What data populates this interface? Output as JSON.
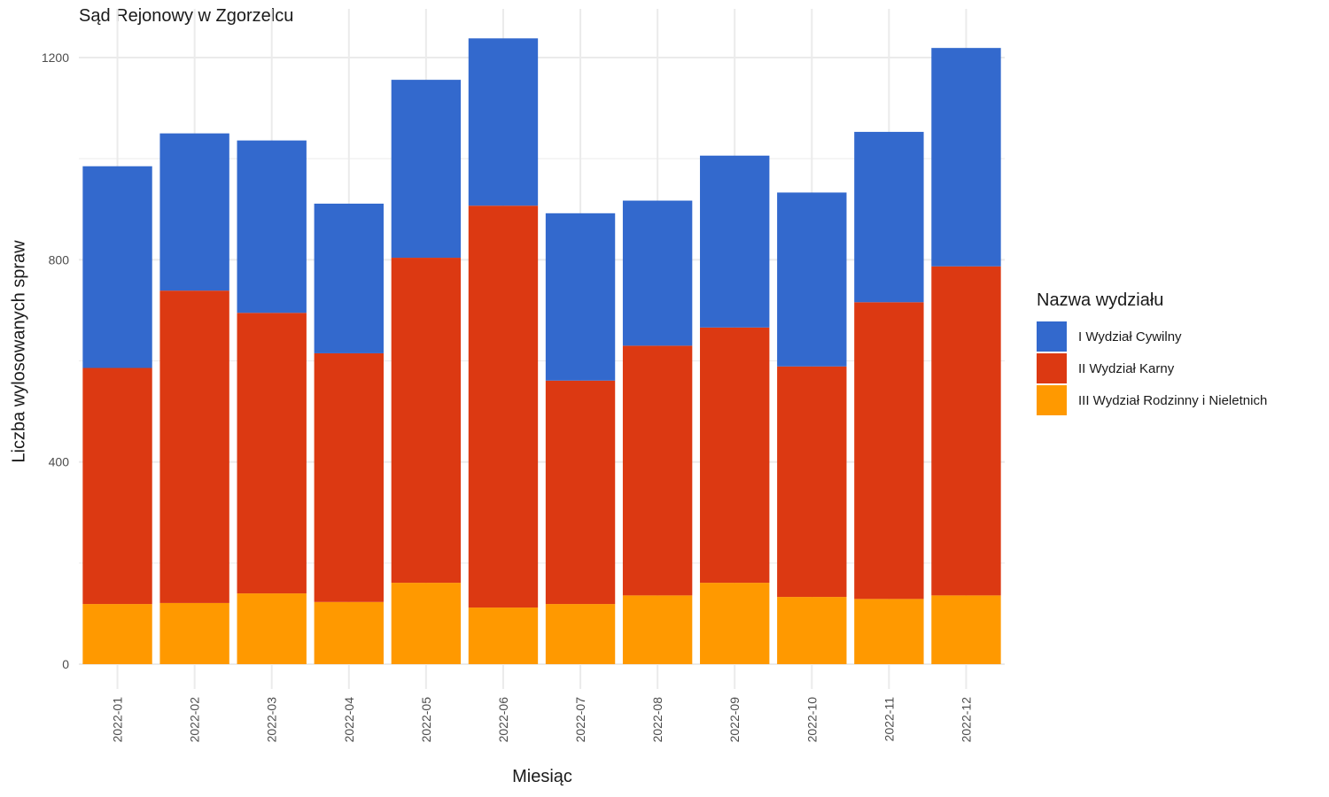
{
  "chart_data": {
    "type": "bar",
    "stacked": true,
    "title": "Sąd Rejonowy w Zgorzelcu",
    "xlabel": "Miesiąc",
    "ylabel": "Liczba wylosowanych spraw",
    "ylim": [
      0,
      1250
    ],
    "yticks": [
      0,
      400,
      800,
      1200
    ],
    "grid": true,
    "legend_position": "right",
    "legend_title": "Nazwa wydziału",
    "categories": [
      "2022-01",
      "2022-02",
      "2022-03",
      "2022-04",
      "2022-05",
      "2022-06",
      "2022-07",
      "2022-08",
      "2022-09",
      "2022-10",
      "2022-11",
      "2022-12"
    ],
    "series": [
      {
        "name": "I Wydział Cywilny",
        "color": "#3369cd",
        "values": [
          399,
          311,
          341,
          296,
          352,
          331,
          331,
          287,
          340,
          344,
          337,
          432
        ]
      },
      {
        "name": "II Wydział Karny",
        "color": "#dc3912",
        "values": [
          467,
          618,
          555,
          492,
          643,
          795,
          442,
          494,
          505,
          456,
          587,
          651
        ]
      },
      {
        "name": "III Wydział Rodzinny i Nieletnich",
        "color": "#ff9900",
        "values": [
          119,
          121,
          140,
          123,
          161,
          112,
          119,
          136,
          161,
          133,
          129,
          136
        ]
      }
    ]
  }
}
